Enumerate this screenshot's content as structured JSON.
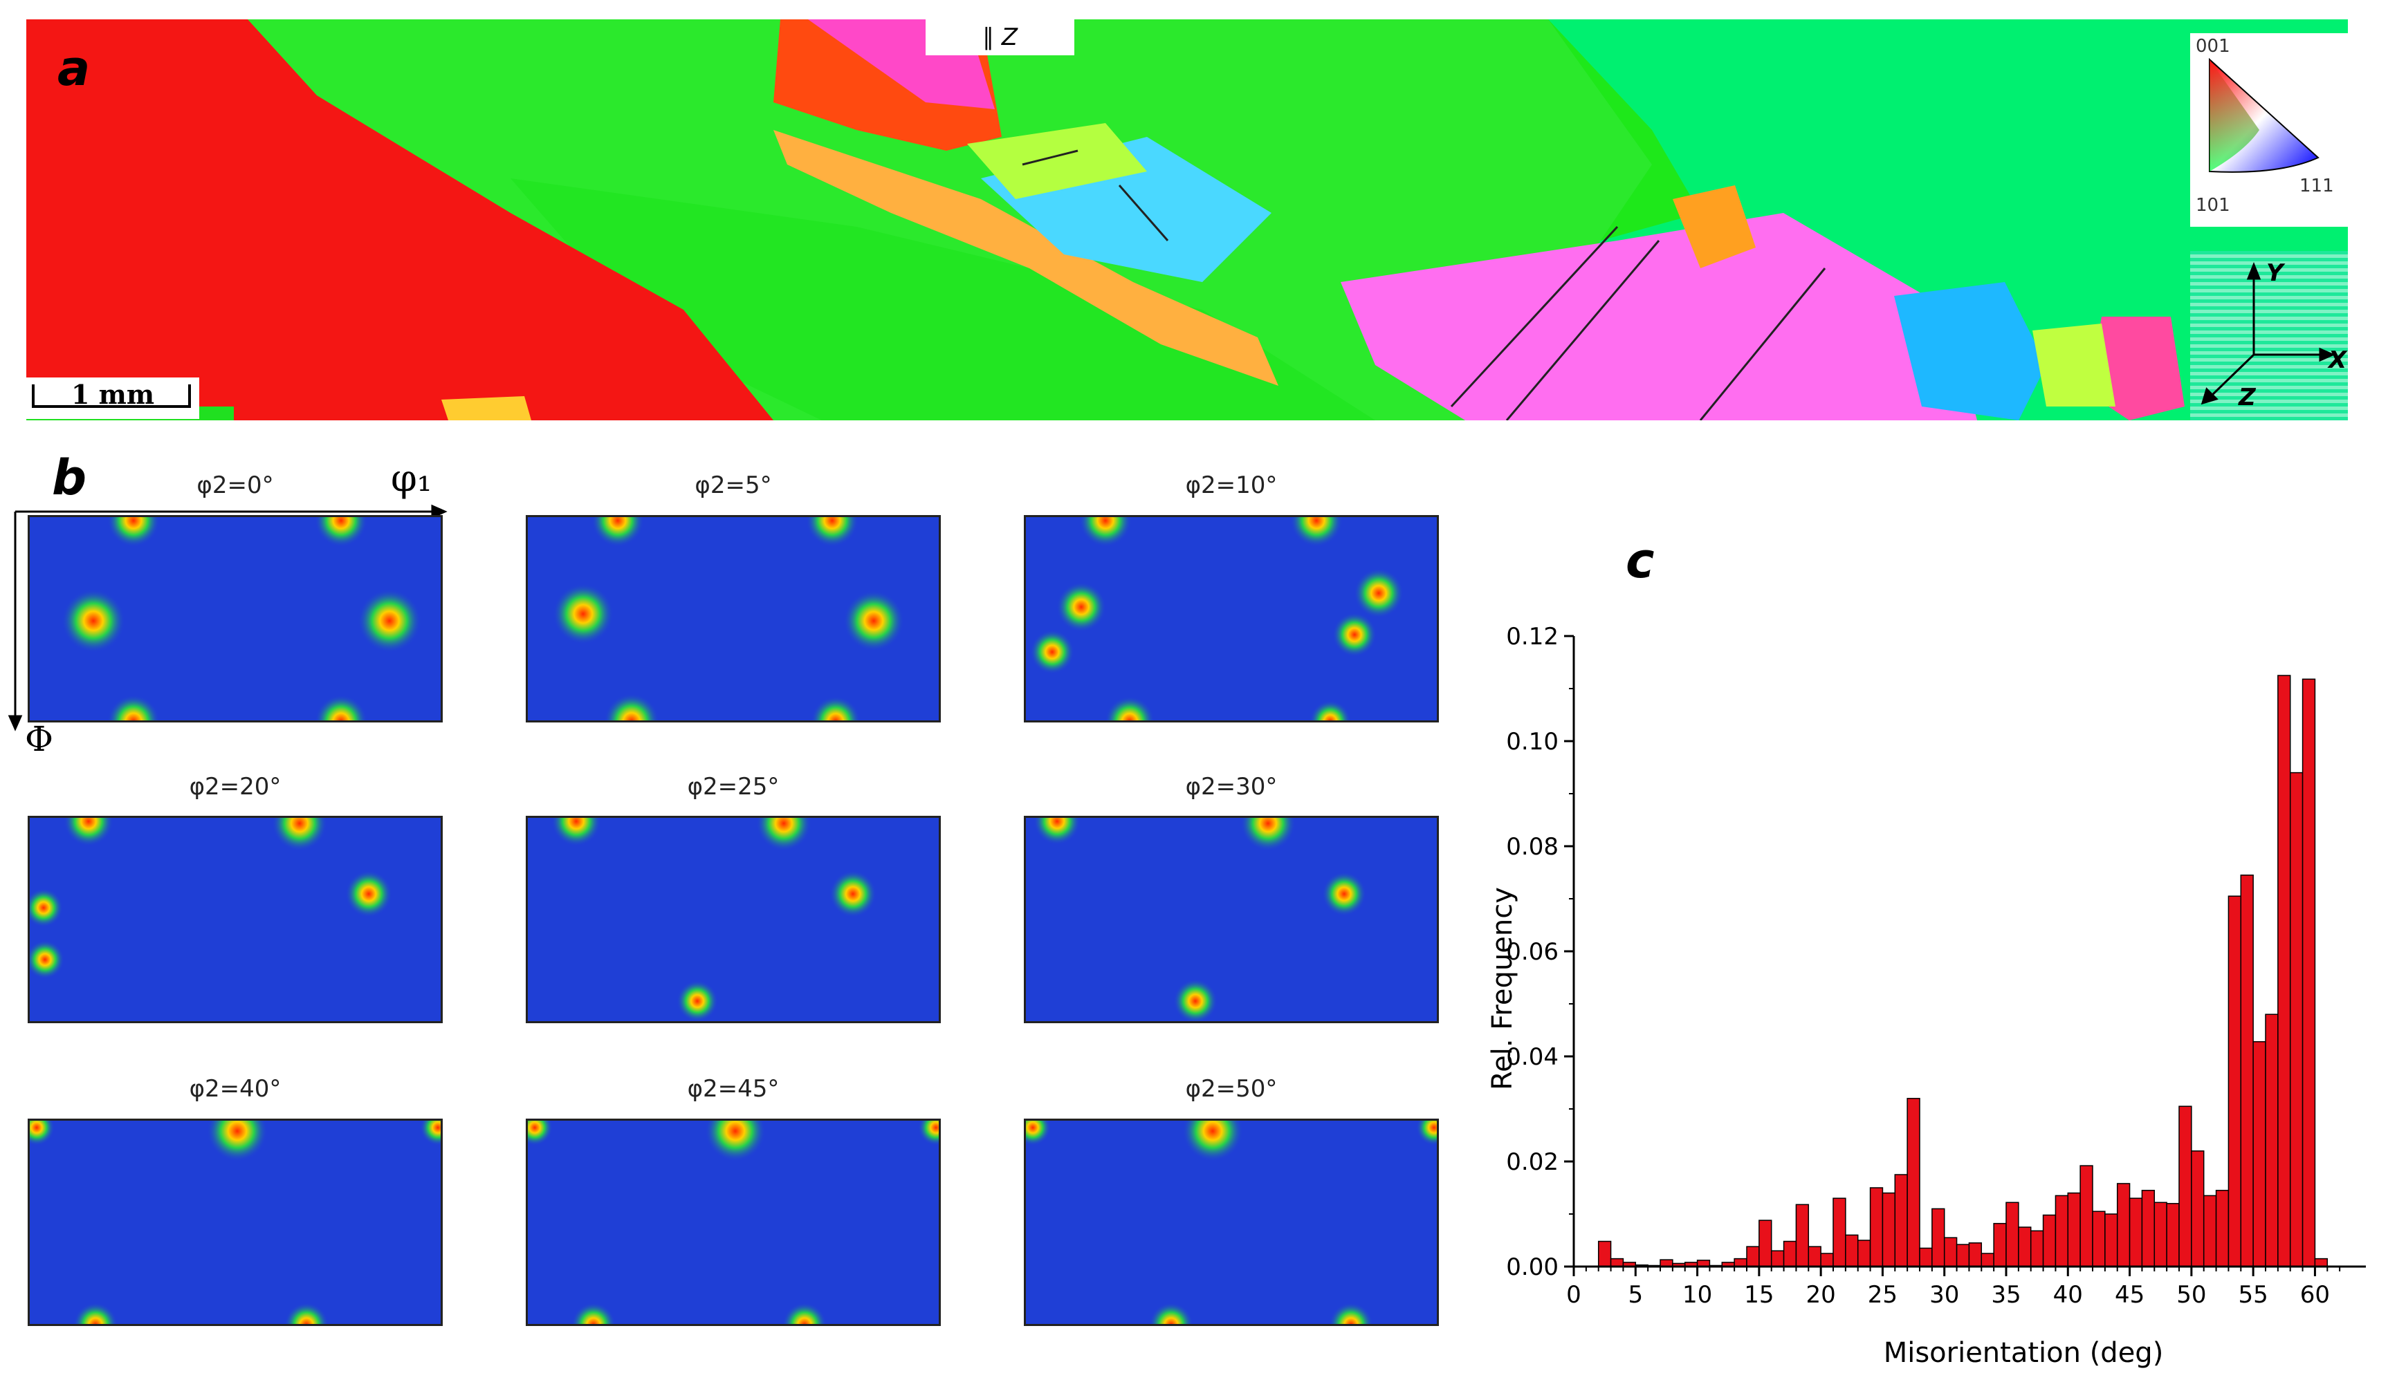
{
  "figure": {
    "panel_a": {
      "letter": "a",
      "scale_bar_label": "1 mm",
      "direction_label": "∥ Z",
      "ipf_legend": {
        "top": "001",
        "left": "101",
        "right": "111"
      },
      "axes": {
        "y": "Y",
        "x": "X",
        "z": "Z"
      }
    },
    "panel_b": {
      "letter": "b",
      "axis_phi1": "φ₁",
      "axis_Phi": "Φ",
      "sections": [
        {
          "title": "φ2=0°"
        },
        {
          "title": "φ2=5°"
        },
        {
          "title": "φ2=10°"
        },
        {
          "title": "φ2=20°"
        },
        {
          "title": "φ2=25°"
        },
        {
          "title": "φ2=30°"
        },
        {
          "title": "φ2=40°"
        },
        {
          "title": "φ2=45°"
        },
        {
          "title": "φ2=50°"
        }
      ]
    },
    "panel_c": {
      "letter": "c"
    }
  },
  "colors": {
    "bar": "#e8101a",
    "odf_bg": "#1f3fd6"
  },
  "chart_data": {
    "type": "bar",
    "title": "",
    "xlabel": "Misorientation (deg)",
    "ylabel": "Rel. Frequency",
    "xlim": [
      0,
      63
    ],
    "ylim": [
      0,
      0.12
    ],
    "x_ticks": [
      0,
      5,
      10,
      15,
      20,
      25,
      30,
      35,
      40,
      45,
      50,
      55,
      60
    ],
    "y_ticks": [
      "0.00",
      "0.02",
      "0.04",
      "0.06",
      "0.08",
      "0.10",
      "0.12"
    ],
    "x": [
      2.5,
      3.5,
      4.5,
      5.5,
      6.5,
      7.5,
      8.5,
      9.5,
      10.5,
      11.5,
      12.5,
      13.5,
      14.5,
      15.5,
      16.5,
      17.5,
      18.5,
      19.5,
      20.5,
      21.5,
      22.5,
      23.5,
      24.5,
      25.5,
      26.5,
      27.5,
      28.5,
      29.5,
      30.5,
      31.5,
      32.5,
      33.5,
      34.5,
      35.5,
      36.5,
      37.5,
      38.5,
      39.5,
      40.5,
      41.5,
      42.5,
      43.5,
      44.5,
      45.5,
      46.5,
      47.5,
      48.5,
      49.5,
      50.5,
      51.5,
      52.5,
      53.5,
      54.5,
      55.5,
      56.5,
      57.5,
      58.5,
      59.5,
      60.5
    ],
    "values": [
      0.0048,
      0.0015,
      0.0008,
      0.0003,
      0.0002,
      0.0013,
      0.0006,
      0.0008,
      0.0012,
      0.0002,
      0.0008,
      0.0015,
      0.0038,
      0.0088,
      0.003,
      0.0048,
      0.0118,
      0.0038,
      0.0025,
      0.013,
      0.006,
      0.005,
      0.015,
      0.014,
      0.0175,
      0.032,
      0.0035,
      0.011,
      0.0055,
      0.0042,
      0.0045,
      0.0025,
      0.0082,
      0.0122,
      0.0075,
      0.0068,
      0.0098,
      0.0135,
      0.014,
      0.0192,
      0.0105,
      0.01,
      0.0158,
      0.013,
      0.0145,
      0.0122,
      0.012,
      0.0305,
      0.022,
      0.0135,
      0.0145,
      0.0705,
      0.0745,
      0.0428,
      0.048,
      0.1125,
      0.094,
      0.1118,
      0.0015
    ]
  }
}
